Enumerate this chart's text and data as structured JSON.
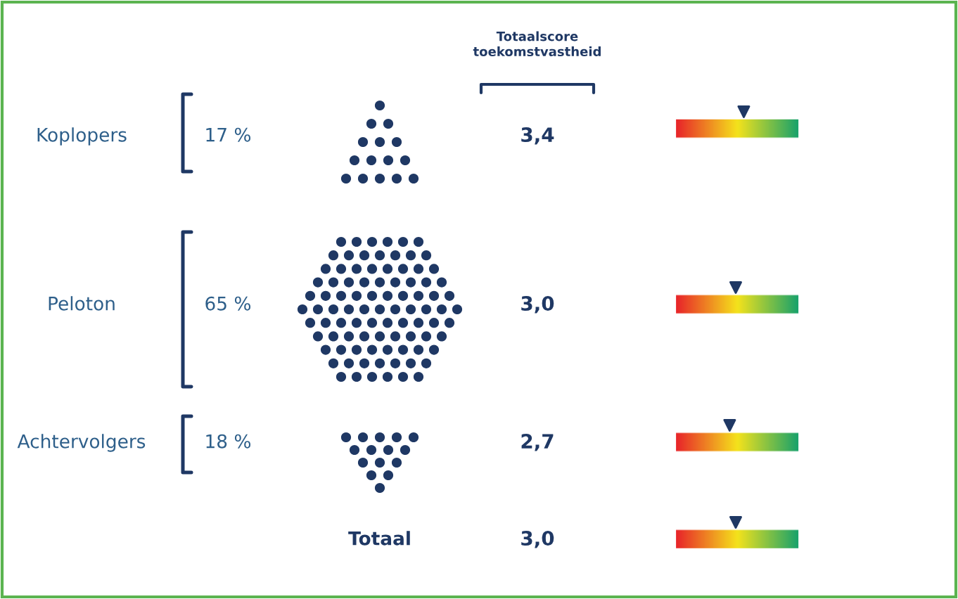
{
  "chart_data": {
    "type": "other",
    "categories": [
      "Koplopers",
      "Peloton",
      "Achtervolgers",
      "Totaal"
    ],
    "series": [
      {
        "color": "#1f3864",
        "values": [
          17,
          65,
          18,
          null
        ],
        "value_labels": [
          "17 %",
          "65 %",
          "18 %",
          null
        ]
      },
      {
        "name": "Totaalscore\ntoekomstvastheid",
        "color": "#1f3864",
        "values": [
          3.4,
          3.0,
          2.7,
          3.0
        ],
        "value_labels": [
          "3,4",
          "3,0",
          "2,7",
          "3,0"
        ]
      }
    ]
  }
}
